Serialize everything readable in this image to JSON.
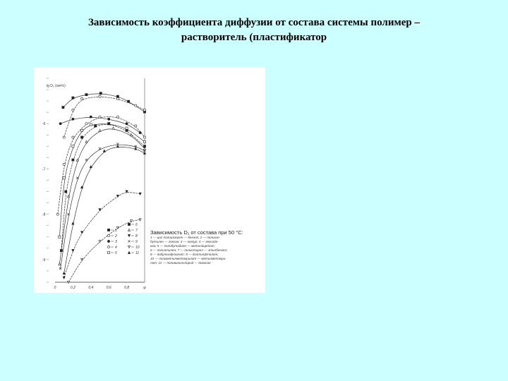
{
  "title_line1": "Зависимость коэффициента диффузии от состава системы полимер –",
  "title_line2": "растворитель (пластификатор",
  "figure": {
    "caption_head": "Зависимость D₁ от состава при 50 °C:",
    "caption_lines": [
      "1 — цис-полиизопрен — бензол; 2 — полиизо-",
      "бутилен — гексан; 3 — натур; 4 — гексаде-",
      "кан; 5 — полибутадиен — метилацетат;",
      "6 — полиэтилен; 7 — полистирол — этилбензол;",
      "8 — дибутилфталат; 9 — диэтилфталат;",
      "10 — полиметилметакрилат — метилметакри-",
      "лат; 11 — поливинилхлорид — диоксан"
    ]
  },
  "chart_data": {
    "type": "line",
    "title": "",
    "ylabel": "lg D₁ (см²/с)",
    "xlabel": "φ",
    "xlim": [
      0,
      1.0
    ],
    "ylim": [
      -9.5,
      -5.0
    ],
    "x_ticks": [
      "0",
      "0,2",
      "0,4",
      "0,6",
      "0,8",
      "φ"
    ],
    "x_tick_values": [
      0,
      0.2,
      0.4,
      0.6,
      0.8,
      1.0
    ],
    "y_ticks": [
      "-6",
      "-7",
      "-8",
      "-9"
    ],
    "y_tick_values": [
      -6,
      -7,
      -8,
      -9
    ],
    "grid": false,
    "legend_placement": "bottom-right",
    "legend": [
      {
        "label": "1",
        "marker": "filled-square"
      },
      {
        "label": "2",
        "marker": "open-circle"
      },
      {
        "label": "3",
        "marker": "filled-circle"
      },
      {
        "label": "4",
        "marker": "open-circle"
      },
      {
        "label": "5",
        "marker": "open-square"
      },
      {
        "label": "6",
        "marker": "filled-square"
      },
      {
        "label": "7",
        "marker": "open-triangle"
      },
      {
        "label": "8",
        "marker": "filled-triangle-down"
      },
      {
        "label": "9",
        "marker": "cross"
      },
      {
        "label": "10",
        "marker": "open-triangle-down"
      },
      {
        "label": "11",
        "marker": "filled-triangle"
      }
    ],
    "series": [
      {
        "label": "1",
        "points": [
          [
            0.09,
            -5.64
          ],
          [
            0.2,
            -5.43
          ],
          [
            0.35,
            -5.36
          ],
          [
            0.51,
            -5.33
          ],
          [
            0.7,
            -5.4
          ],
          [
            0.82,
            -5.51
          ],
          [
            1.0,
            -5.74
          ]
        ]
      },
      {
        "label": "2",
        "points": [
          [
            0.1,
            -6.3
          ],
          [
            0.2,
            -5.7
          ],
          [
            0.3,
            -5.45
          ],
          [
            0.5,
            -5.4
          ],
          [
            0.7,
            -5.45
          ],
          [
            0.9,
            -5.6
          ],
          [
            1.0,
            -5.7
          ]
        ]
      },
      {
        "label": "3",
        "points": [
          [
            0.06,
            -6.0
          ],
          [
            0.2,
            -5.9
          ],
          [
            0.4,
            -5.85
          ],
          [
            0.6,
            -5.9
          ],
          [
            0.8,
            -6.0
          ],
          [
            0.95,
            -6.2
          ]
        ]
      },
      {
        "label": "4",
        "points": [
          [
            0.03,
            -8.0
          ],
          [
            0.1,
            -6.9
          ],
          [
            0.2,
            -6.3
          ],
          [
            0.35,
            -6.0
          ],
          [
            0.5,
            -5.85
          ],
          [
            0.7,
            -5.85
          ],
          [
            0.9,
            -6.05
          ],
          [
            1.0,
            -6.3
          ]
        ]
      },
      {
        "label": "5",
        "points": [
          [
            0.05,
            -8.5
          ],
          [
            0.1,
            -7.2
          ],
          [
            0.2,
            -6.5
          ],
          [
            0.3,
            -6.15
          ],
          [
            0.4,
            -6.02
          ],
          [
            0.6,
            -6.0
          ],
          [
            0.8,
            -6.1
          ],
          [
            1.0,
            -6.4
          ]
        ]
      },
      {
        "label": "6",
        "points": [
          [
            0.07,
            -8.8
          ],
          [
            0.12,
            -7.5
          ],
          [
            0.2,
            -6.8
          ],
          [
            0.3,
            -6.3
          ],
          [
            0.45,
            -6.05
          ],
          [
            0.6,
            -6.0
          ],
          [
            0.8,
            -6.15
          ],
          [
            1.0,
            -6.5
          ]
        ]
      },
      {
        "label": "7",
        "points": [
          [
            0.05,
            -9.1
          ],
          [
            0.15,
            -7.6
          ],
          [
            0.25,
            -6.8
          ],
          [
            0.35,
            -6.4
          ],
          [
            0.5,
            -6.15
          ],
          [
            0.65,
            -6.1
          ],
          [
            0.85,
            -6.25
          ],
          [
            1.0,
            -6.55
          ]
        ]
      },
      {
        "label": "8",
        "points": [
          [
            0.1,
            -9.4
          ],
          [
            0.2,
            -8.8
          ],
          [
            0.3,
            -8.4
          ],
          [
            0.5,
            -7.9
          ],
          [
            0.7,
            -7.6
          ],
          [
            0.8,
            -7.5
          ],
          [
            0.95,
            -7.55
          ]
        ]
      },
      {
        "label": "9",
        "points": [
          [
            0.06,
            -9.2
          ],
          [
            0.15,
            -8.0
          ],
          [
            0.25,
            -7.2
          ],
          [
            0.35,
            -6.8
          ],
          [
            0.5,
            -6.55
          ],
          [
            0.7,
            -6.45
          ],
          [
            0.9,
            -6.5
          ],
          [
            1.0,
            -6.6
          ]
        ]
      },
      {
        "label": "10",
        "points": [
          [
            0.15,
            -9.5
          ],
          [
            0.3,
            -9.0
          ],
          [
            0.5,
            -8.6
          ],
          [
            0.7,
            -8.3
          ],
          [
            0.85,
            -8.15
          ],
          [
            0.95,
            -8.12
          ]
        ]
      },
      {
        "label": "11",
        "points": [
          [
            0.1,
            -9.3
          ],
          [
            0.2,
            -8.2
          ],
          [
            0.3,
            -7.4
          ],
          [
            0.4,
            -6.95
          ],
          [
            0.55,
            -6.6
          ],
          [
            0.7,
            -6.5
          ],
          [
            0.9,
            -6.55
          ],
          [
            1.0,
            -6.65
          ]
        ]
      }
    ]
  }
}
